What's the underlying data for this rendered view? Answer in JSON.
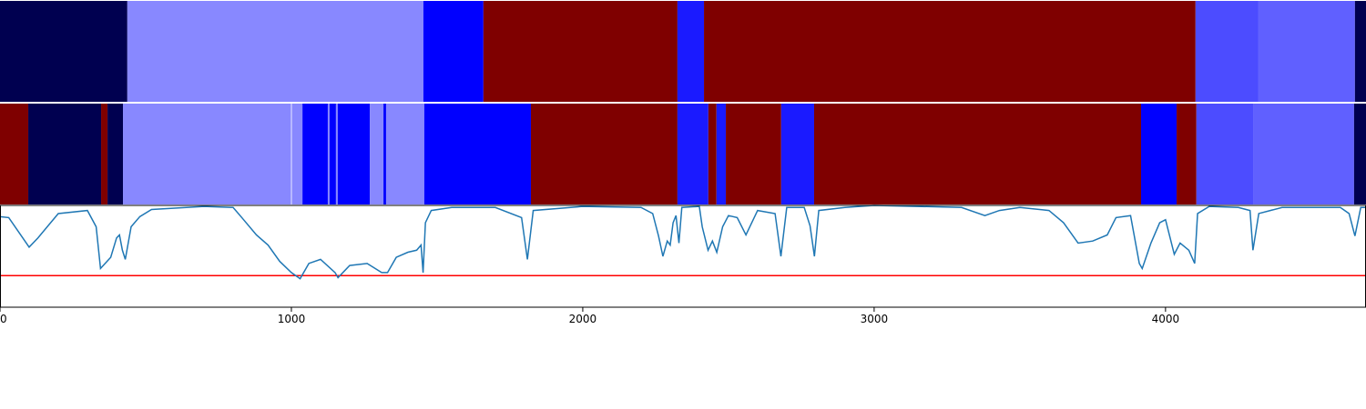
{
  "chart_data": [
    {
      "type": "bands",
      "xlim": [
        0,
        4688
      ],
      "edges": [
        0,
        437,
        1453,
        1659,
        2325,
        2416,
        4103,
        4319,
        4650,
        4688
      ],
      "colors": [
        "#000050",
        "#8888ff",
        "#0000ff",
        "#7f0000",
        "#1a1aff",
        "#7f0000",
        "#4c4cff",
        "#6060ff",
        "#000050"
      ]
    },
    {
      "type": "bands",
      "xlim": [
        0,
        4688
      ],
      "edges": [
        0,
        97,
        347,
        369,
        422,
        997,
        1003,
        1038,
        1125,
        1131,
        1153,
        1159,
        1269,
        1316,
        1325,
        1456,
        1822,
        2325,
        2431,
        2459,
        2491,
        2681,
        2794,
        3916,
        4038,
        4106,
        4303,
        4647,
        4688
      ],
      "colors": [
        "#7f0000",
        "#000050",
        "#7f0000",
        "#000050",
        "#8888ff",
        "#b8b8ff",
        "#8888ff",
        "#0000ff",
        "#8888ff",
        "#0000ff",
        "#8888ff",
        "#0000ff",
        "#8888ff",
        "#0000ff",
        "#8888ff",
        "#0000ff",
        "#7f0000",
        "#1a1aff",
        "#7f0000",
        "#1a1aff",
        "#7f0000",
        "#1a1aff",
        "#7f0000",
        "#0000ff",
        "#7f0000",
        "#4c4cff",
        "#6060ff",
        "#000050"
      ]
    },
    {
      "type": "line",
      "xlim": [
        0,
        4688
      ],
      "ylim": [
        0,
        1
      ],
      "xticks": [
        0,
        1000,
        2000,
        3000,
        4000
      ],
      "x": [
        0,
        30,
        100,
        130,
        200,
        300,
        330,
        345,
        380,
        400,
        410,
        420,
        430,
        450,
        480,
        520,
        700,
        800,
        830,
        880,
        920,
        960,
        1000,
        1030,
        1060,
        1100,
        1150,
        1160,
        1200,
        1260,
        1310,
        1330,
        1360,
        1400,
        1430,
        1445,
        1452,
        1460,
        1480,
        1550,
        1700,
        1790,
        1810,
        1830,
        2000,
        2200,
        2240,
        2260,
        2275,
        2290,
        2300,
        2310,
        2320,
        2330,
        2340,
        2400,
        2410,
        2430,
        2445,
        2460,
        2480,
        2500,
        2530,
        2560,
        2600,
        2660,
        2680,
        2700,
        2760,
        2780,
        2795,
        2810,
        2900,
        3000,
        3300,
        3380,
        3430,
        3500,
        3600,
        3650,
        3700,
        3750,
        3800,
        3830,
        3880,
        3910,
        3920,
        3950,
        3980,
        4000,
        4030,
        4050,
        4080,
        4100,
        4110,
        4150,
        4250,
        4290,
        4300,
        4320,
        4400,
        4600,
        4630,
        4650,
        4670,
        4688
      ],
      "series": [
        {
          "color": "#1f77b4",
          "values": [
            0.89,
            0.88,
            0.59,
            0.68,
            0.92,
            0.95,
            0.79,
            0.38,
            0.49,
            0.68,
            0.71,
            0.56,
            0.47,
            0.79,
            0.89,
            0.96,
            0.99,
            0.98,
            0.88,
            0.71,
            0.61,
            0.45,
            0.34,
            0.28,
            0.43,
            0.47,
            0.34,
            0.29,
            0.41,
            0.43,
            0.34,
            0.34,
            0.49,
            0.54,
            0.56,
            0.61,
            0.34,
            0.83,
            0.95,
            0.98,
            0.98,
            0.88,
            0.47,
            0.95,
            0.99,
            0.98,
            0.92,
            0.7,
            0.5,
            0.65,
            0.61,
            0.83,
            0.9,
            0.63,
            0.98,
            0.99,
            0.79,
            0.56,
            0.65,
            0.54,
            0.79,
            0.9,
            0.88,
            0.71,
            0.95,
            0.92,
            0.5,
            0.98,
            0.98,
            0.8,
            0.5,
            0.95,
            0.98,
            1.0,
            0.98,
            0.9,
            0.95,
            0.98,
            0.95,
            0.83,
            0.63,
            0.65,
            0.71,
            0.88,
            0.9,
            0.43,
            0.38,
            0.63,
            0.83,
            0.86,
            0.52,
            0.63,
            0.56,
            0.43,
            0.92,
            0.99,
            0.98,
            0.95,
            0.56,
            0.92,
            0.98,
            0.98,
            0.92,
            0.7,
            0.98,
            0.98
          ]
        }
      ],
      "hline": {
        "value": 0.31,
        "color": "#ff0000"
      }
    }
  ]
}
